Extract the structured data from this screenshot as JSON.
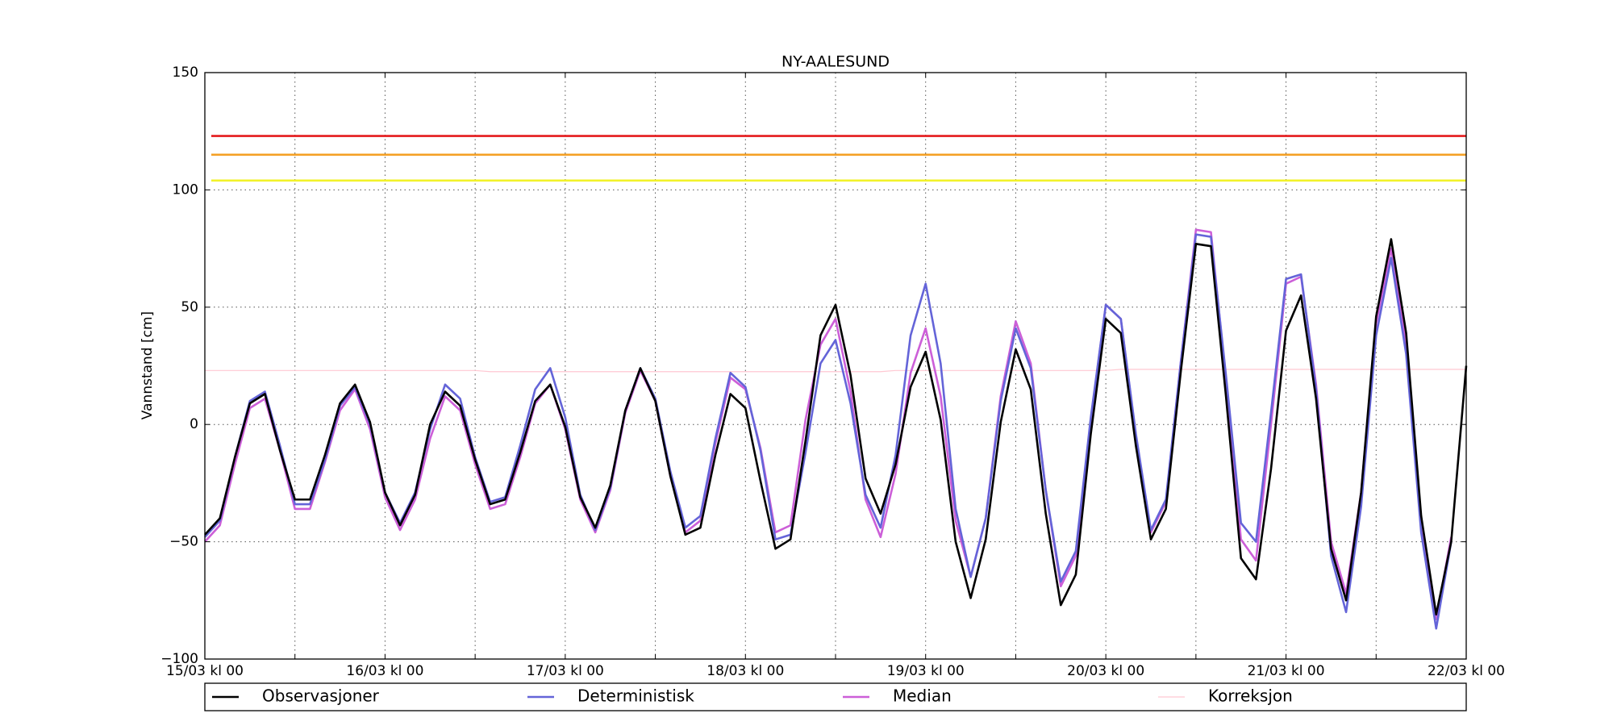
{
  "chart_data": {
    "type": "line",
    "title": "NY-AALESUND",
    "y_label": "Vannstand [cm]",
    "x": [
      0,
      2,
      4,
      6,
      8,
      10,
      12,
      14,
      16,
      18,
      20,
      22,
      24,
      26,
      28,
      30,
      32,
      34,
      36,
      38,
      40,
      42,
      44,
      46,
      48,
      50,
      52,
      54,
      56,
      58,
      60,
      62,
      64,
      66,
      68,
      70,
      72,
      74,
      76,
      78,
      80,
      82,
      84,
      86,
      88,
      90,
      92,
      94,
      96,
      98,
      100,
      102,
      104,
      106,
      108,
      110,
      112,
      114,
      116,
      118,
      120,
      122,
      124,
      126,
      128,
      130,
      132,
      134,
      136,
      138,
      140,
      142,
      144,
      146,
      148,
      150,
      152,
      154,
      156,
      158,
      160,
      162,
      164,
      166,
      168
    ],
    "xlim": [
      0,
      168
    ],
    "xticks": [
      {
        "value": 0,
        "label": "15/03 kl 00"
      },
      {
        "value": 24,
        "label": "16/03 kl 00"
      },
      {
        "value": 48,
        "label": "17/03 kl 00"
      },
      {
        "value": 72,
        "label": "18/03 kl 00"
      },
      {
        "value": 96,
        "label": "19/03 kl 00"
      },
      {
        "value": 120,
        "label": "20/03 kl 00"
      },
      {
        "value": 144,
        "label": "21/03 kl 00"
      },
      {
        "value": 168,
        "label": "22/03 kl 00"
      }
    ],
    "xminorticks": [
      12,
      36,
      60,
      84,
      108,
      132,
      156
    ],
    "ylim": [
      -100,
      150
    ],
    "yticks": [
      {
        "value": -100,
        "label": "−100"
      },
      {
        "value": -50,
        "label": "−50"
      },
      0,
      50,
      100,
      150
    ],
    "grid": true,
    "legend": "bottom",
    "thresholds": [
      {
        "value": 123,
        "color": "#e41a1c"
      },
      {
        "value": 115,
        "color": "#f4a025"
      },
      {
        "value": 104,
        "color": "#f2f22a"
      }
    ],
    "series": [
      {
        "name": "Observasjoner",
        "color": "#000000",
        "values": [
          -47,
          -40,
          -14,
          9,
          13,
          -11,
          -32,
          -32,
          -13,
          9,
          17,
          1,
          -29,
          -43,
          -30,
          0,
          14,
          8,
          -15,
          -34,
          -32,
          -12,
          10,
          17,
          -1,
          -31,
          -44,
          -26,
          6,
          24,
          10,
          -22,
          -47,
          -44,
          -13,
          13,
          7,
          -24,
          -53,
          -49,
          -7,
          38,
          51,
          21,
          -23,
          -38,
          -17,
          16,
          31,
          2,
          -50,
          -74,
          -49,
          1,
          32,
          15,
          -38,
          -77,
          -64,
          -4,
          45,
          39,
          -9,
          -49,
          -36,
          23,
          77,
          76,
          12,
          -57,
          -66,
          -19,
          40,
          55,
          11,
          -53,
          -75,
          -29,
          46,
          79,
          39,
          -39,
          -81,
          -50,
          25
        ]
      },
      {
        "name": "Deterministisk",
        "color": "#6464d8",
        "values": [
          -48,
          -41,
          -14,
          10,
          14,
          -9,
          -34,
          -34,
          -15,
          8,
          16,
          0,
          -29,
          -42,
          -29,
          -2,
          17,
          11,
          -14,
          -33,
          -31,
          -9,
          15,
          24,
          3,
          -30,
          -45,
          -27,
          6,
          24,
          11,
          -20,
          -44,
          -39,
          -6,
          22,
          16,
          -11,
          -49,
          -47,
          -12,
          26,
          36,
          9,
          -30,
          -44,
          -13,
          38,
          60,
          26,
          -36,
          -65,
          -40,
          10,
          41,
          24,
          -28,
          -67,
          -54,
          3,
          51,
          45,
          -4,
          -45,
          -32,
          27,
          81,
          80,
          21,
          -42,
          -50,
          5,
          62,
          64,
          15,
          -56,
          -80,
          -35,
          38,
          71,
          30,
          -46,
          -87,
          -50,
          null
        ]
      },
      {
        "name": "Median",
        "color": "#cc5fd8",
        "values": [
          -50,
          -43,
          -17,
          7,
          11,
          -11,
          -36,
          -36,
          -16,
          6,
          15,
          -2,
          -31,
          -45,
          -32,
          -6,
          12,
          6,
          -17,
          -36,
          -34,
          -14,
          9,
          17,
          -2,
          -32,
          -46,
          -28,
          5,
          23,
          10,
          -22,
          -46,
          -41,
          -8,
          20,
          15,
          -10,
          -46,
          -43,
          2,
          34,
          45,
          14,
          -32,
          -48,
          -21,
          22,
          41,
          12,
          -41,
          -65,
          -40,
          12,
          44,
          26,
          -28,
          -69,
          -56,
          2,
          51,
          45,
          -5,
          -46,
          -33,
          27,
          83,
          82,
          19,
          -49,
          -58,
          0,
          60,
          63,
          17,
          -50,
          -72,
          -29,
          43,
          75,
          34,
          -42,
          -83,
          -48,
          null
        ]
      },
      {
        "name": "Korreksjon",
        "color": "#ffc8d2",
        "values": [
          23,
          23,
          23,
          23,
          23,
          23,
          23,
          23,
          23,
          23,
          23,
          23,
          23,
          23,
          23,
          23,
          23,
          23,
          23,
          22.5,
          22.5,
          22.5,
          22.5,
          22.5,
          22.5,
          22.5,
          22.5,
          22.5,
          22.5,
          22.5,
          22.5,
          22.5,
          22.5,
          22.5,
          22.5,
          22.5,
          22.5,
          22.5,
          22.5,
          22.5,
          22.5,
          22.5,
          22.5,
          22.5,
          22.5,
          22.5,
          23,
          23,
          23,
          23,
          23,
          23,
          23,
          23,
          23,
          23,
          23,
          23,
          23,
          23,
          23,
          23.5,
          23.5,
          23.5,
          23.5,
          23.5,
          23.5,
          23.5,
          23.5,
          23.5,
          23.5,
          23.5,
          23.5,
          23.5,
          23.5,
          23.5,
          23.5,
          23.5,
          23.5,
          23.5,
          23.5,
          23.5,
          23.5,
          23.5,
          23.5
        ]
      }
    ]
  }
}
